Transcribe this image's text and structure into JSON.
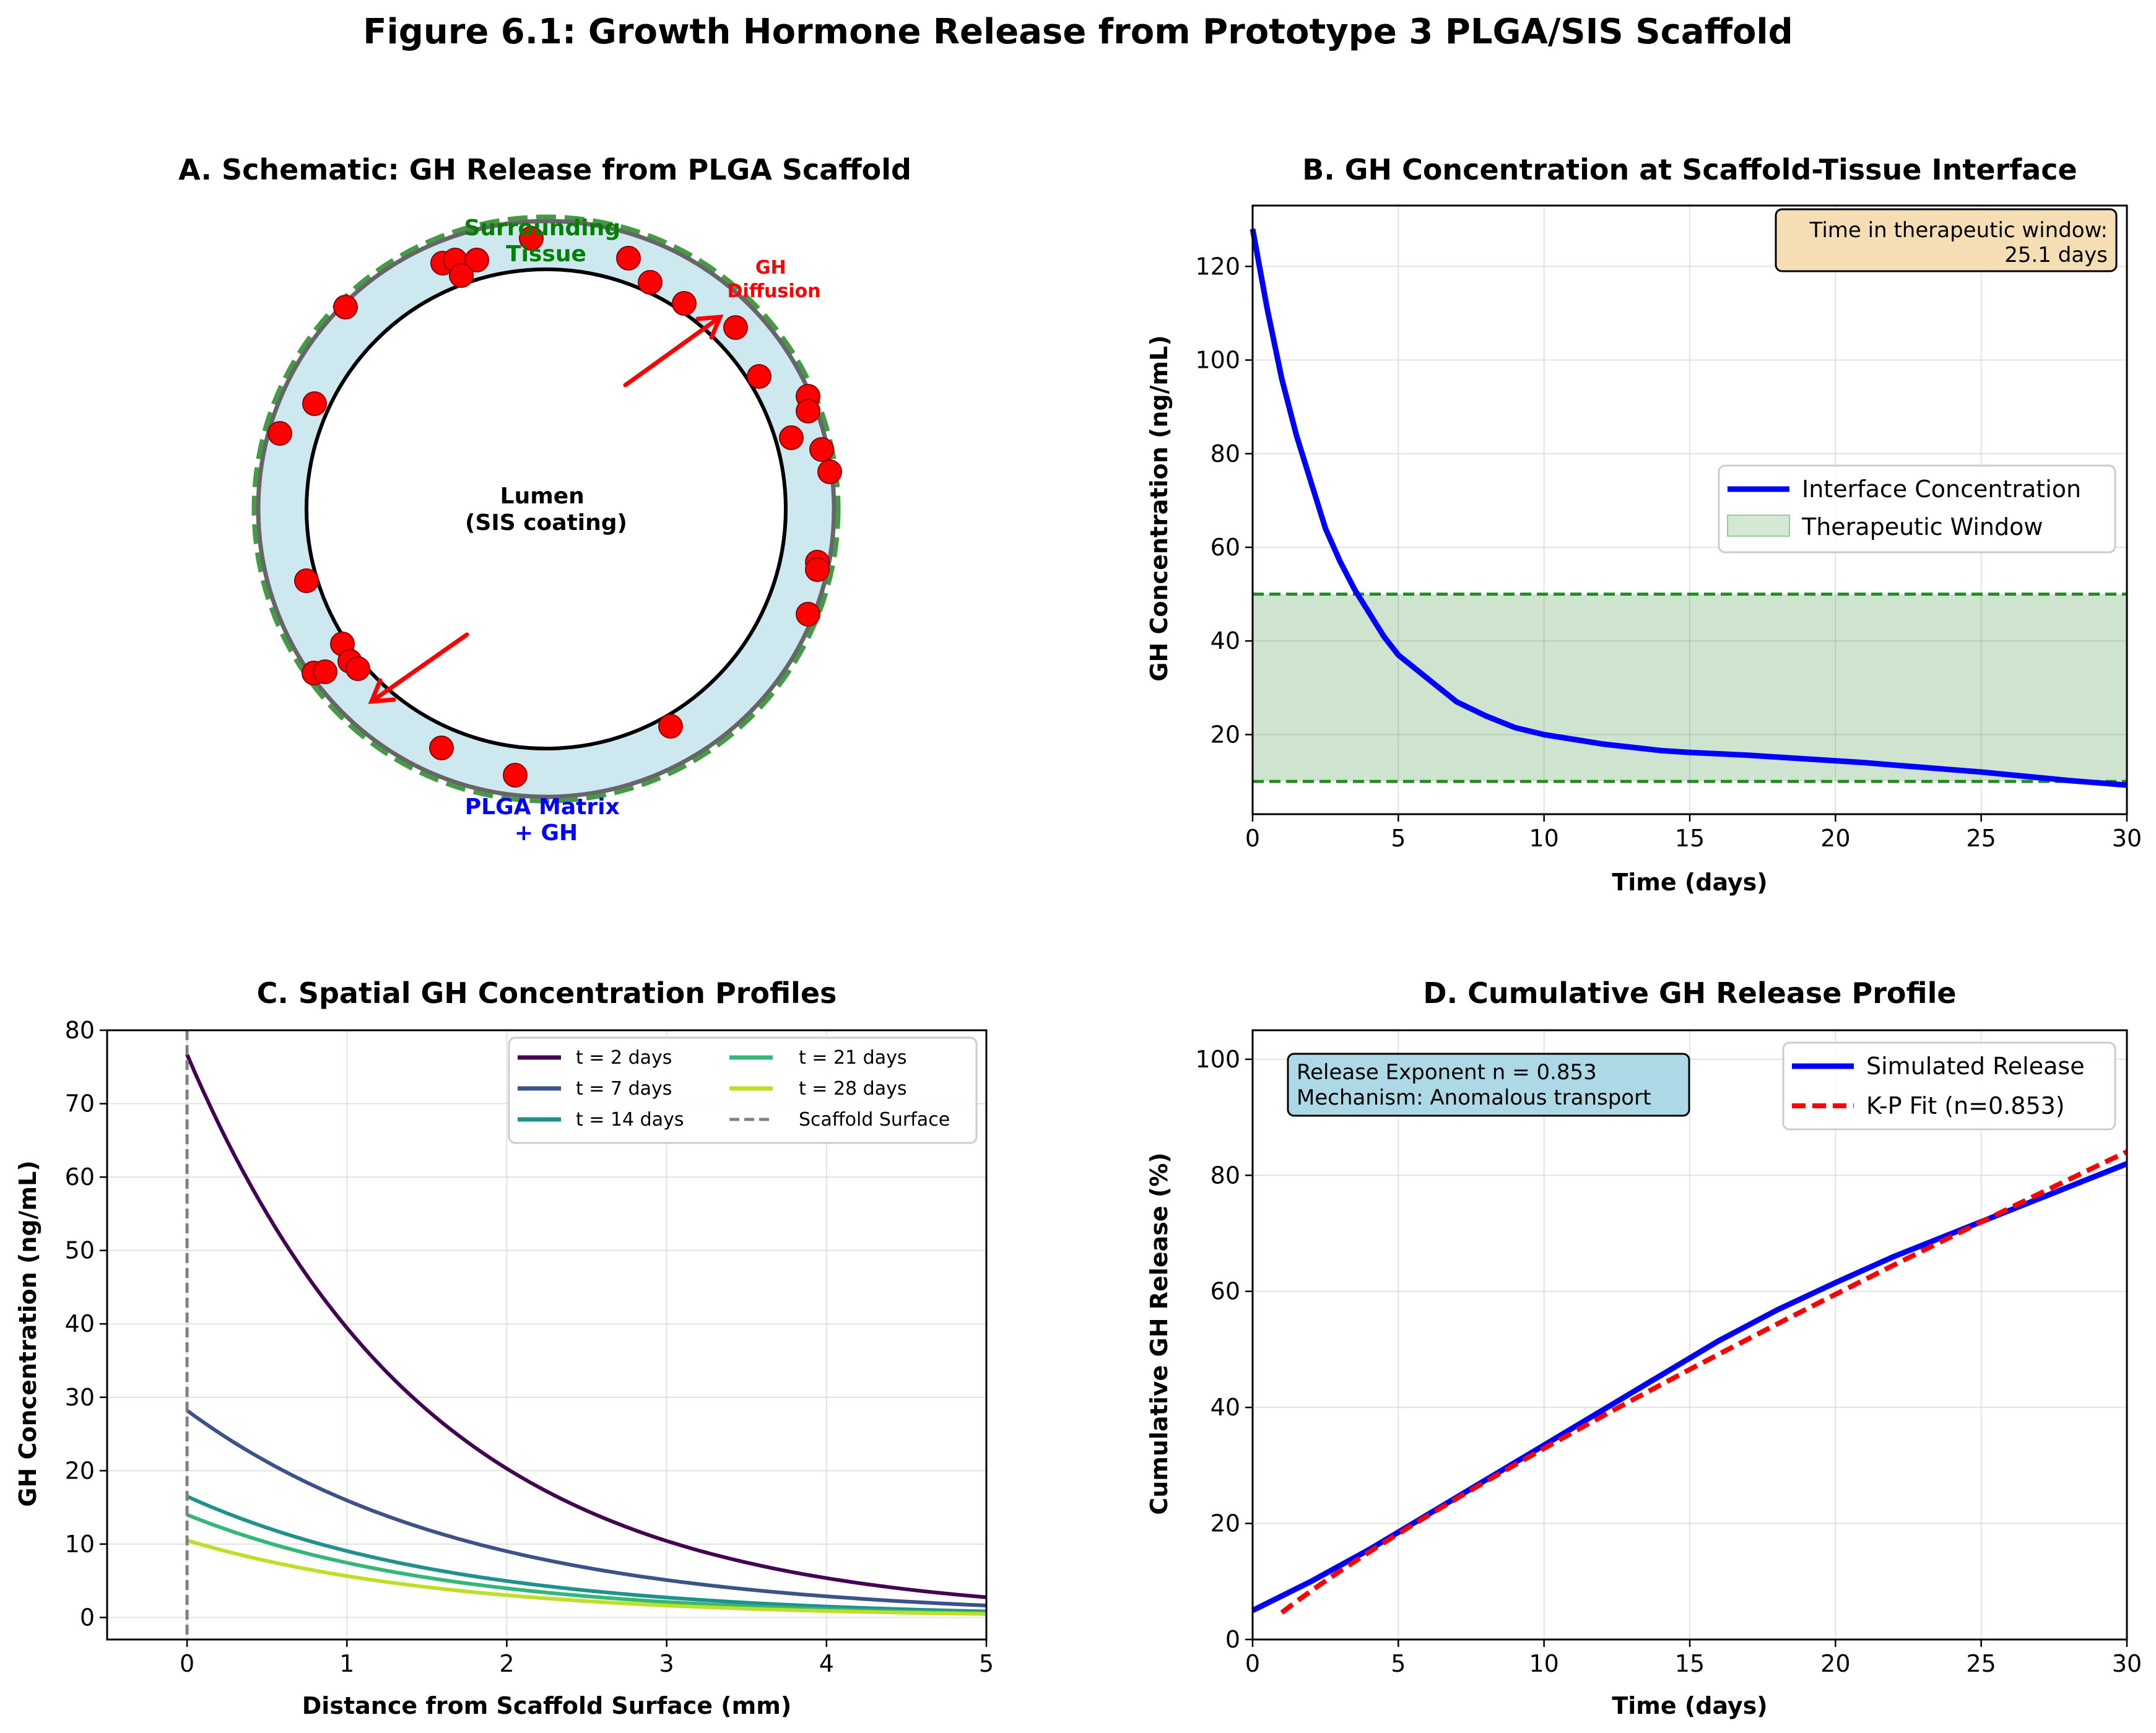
{
  "figure_title": "Figure 6.1: Growth Hormone Release from Prototype 3 PLGA/SIS Scaffold",
  "panels": {
    "A": {
      "title": "A. Schematic: GH Release from PLGA Scaffold",
      "lumen_label": [
        "Lumen",
        "(SIS coating)"
      ],
      "tissue_label": [
        "Surrounding",
        "Tissue"
      ],
      "matrix_label": [
        "PLGA Matrix",
        "+ GH"
      ],
      "diffusion_label": [
        "GH",
        "Diffusion"
      ]
    },
    "B": {
      "title": "B. GH Concentration at Scaffold-Tissue Interface",
      "xlabel": "Time (days)",
      "ylabel": "GH Concentration (ng/mL)",
      "info_box": [
        "Time in therapeutic window:",
        "25.1 days"
      ],
      "legend": [
        "Interface Concentration",
        "Therapeutic Window"
      ]
    },
    "C": {
      "title": "C. Spatial GH Concentration Profiles",
      "xlabel": "Distance from Scaffold Surface (mm)",
      "ylabel": "GH Concentration (ng/mL)",
      "legend": [
        "t = 2 days",
        "t = 7 days",
        "t = 14 days",
        "t = 21 days",
        "t = 28 days",
        "Scaffold Surface"
      ]
    },
    "D": {
      "title": "D. Cumulative GH Release Profile",
      "xlabel": "Time (days)",
      "ylabel": "Cumulative GH Release (%)",
      "info_box": [
        "Release Exponent n = 0.853",
        "Mechanism: Anomalous transport"
      ],
      "legend": [
        "Simulated Release",
        "K-P Fit (n=0.853)"
      ]
    }
  },
  "colors": {
    "matrix_fill": "#add8e6",
    "tissue_dash": "#228b22",
    "particle": "#ff0000",
    "interface": "#0000ff",
    "window_fill": "#2e8b2e",
    "t2": "#440154",
    "t7": "#3b528b",
    "t14": "#21918c",
    "t21": "#35b779",
    "t28": "#bddf26",
    "surface_line": "#808080",
    "kp_fit": "#ff0000",
    "info_box_B": "#f5deb3",
    "info_box_D": "#add8e6"
  },
  "chart_data": [
    {
      "panel": "B",
      "type": "line",
      "xlim": [
        0,
        30
      ],
      "ylim": [
        3,
        133
      ],
      "xticks": [
        0,
        5,
        10,
        15,
        20,
        25,
        30
      ],
      "yticks": [
        20,
        40,
        60,
        80,
        100,
        120
      ],
      "grid": true,
      "legend_position": "center-right",
      "series": [
        {
          "name": "Interface Concentration",
          "x": [
            0,
            0.5,
            1,
            1.5,
            2,
            2.5,
            3,
            3.5,
            4,
            4.5,
            5,
            6,
            7,
            8,
            9,
            10,
            11,
            12,
            13,
            14,
            15,
            16,
            17,
            18,
            19,
            20,
            21,
            22,
            23,
            24,
            25,
            26,
            27,
            28,
            29,
            30
          ],
          "y": [
            128,
            111,
            96,
            84,
            74,
            64,
            57,
            51,
            46,
            41,
            37,
            32,
            27,
            24,
            21.5,
            20,
            19,
            18,
            17.3,
            16.6,
            16.2,
            15.9,
            15.6,
            15.2,
            14.8,
            14.4,
            14,
            13.5,
            13,
            12.5,
            12,
            11.4,
            10.8,
            10.2,
            9.7,
            9.2
          ]
        }
      ],
      "therapeutic_window": {
        "name": "Therapeutic Window",
        "lower": 10,
        "upper": 50
      }
    },
    {
      "panel": "C",
      "type": "line",
      "xlim": [
        -0.5,
        5
      ],
      "ylim": [
        -3,
        80
      ],
      "xticks": [
        0,
        1,
        2,
        3,
        4,
        5
      ],
      "yticks": [
        0,
        10,
        20,
        30,
        40,
        50,
        60,
        70,
        80
      ],
      "grid": true,
      "legend_position": "top-right",
      "series": [
        {
          "name": "t = 2 days",
          "c0": 76.7,
          "decay_per_mm": 0.665,
          "x_range": [
            0,
            5
          ]
        },
        {
          "name": "t = 7 days",
          "c0": 28.2,
          "decay_per_mm": 0.57,
          "x_range": [
            0,
            5
          ]
        },
        {
          "name": "t = 14 days",
          "c0": 16.5,
          "decay_per_mm": 0.6,
          "x_range": [
            0,
            5
          ]
        },
        {
          "name": "t = 21 days",
          "c0": 14.0,
          "decay_per_mm": 0.63,
          "x_range": [
            0,
            5
          ]
        },
        {
          "name": "t = 28 days",
          "c0": 10.5,
          "decay_per_mm": 0.62,
          "x_range": [
            0,
            5
          ]
        }
      ],
      "vertical_marker": {
        "name": "Scaffold Surface",
        "x": 0
      }
    },
    {
      "panel": "D",
      "type": "line",
      "xlim": [
        0,
        30
      ],
      "ylim": [
        0,
        105
      ],
      "xticks": [
        0,
        5,
        10,
        15,
        20,
        25,
        30
      ],
      "yticks": [
        0,
        20,
        40,
        60,
        80,
        100
      ],
      "grid": true,
      "legend_position": "top-right",
      "series": [
        {
          "name": "Simulated Release",
          "x": [
            0,
            2,
            4,
            6,
            8,
            10,
            12,
            14,
            16,
            18,
            20,
            22,
            24,
            26,
            28,
            30
          ],
          "y": [
            5,
            10,
            15.5,
            21.5,
            27.5,
            33.5,
            39.5,
            45.5,
            51.5,
            56.8,
            61.5,
            66,
            70,
            74,
            78,
            82
          ]
        },
        {
          "name": "K-P Fit (n=0.853)",
          "k": 4.62,
          "n": 0.853,
          "x_range": [
            1,
            30
          ]
        }
      ]
    }
  ]
}
